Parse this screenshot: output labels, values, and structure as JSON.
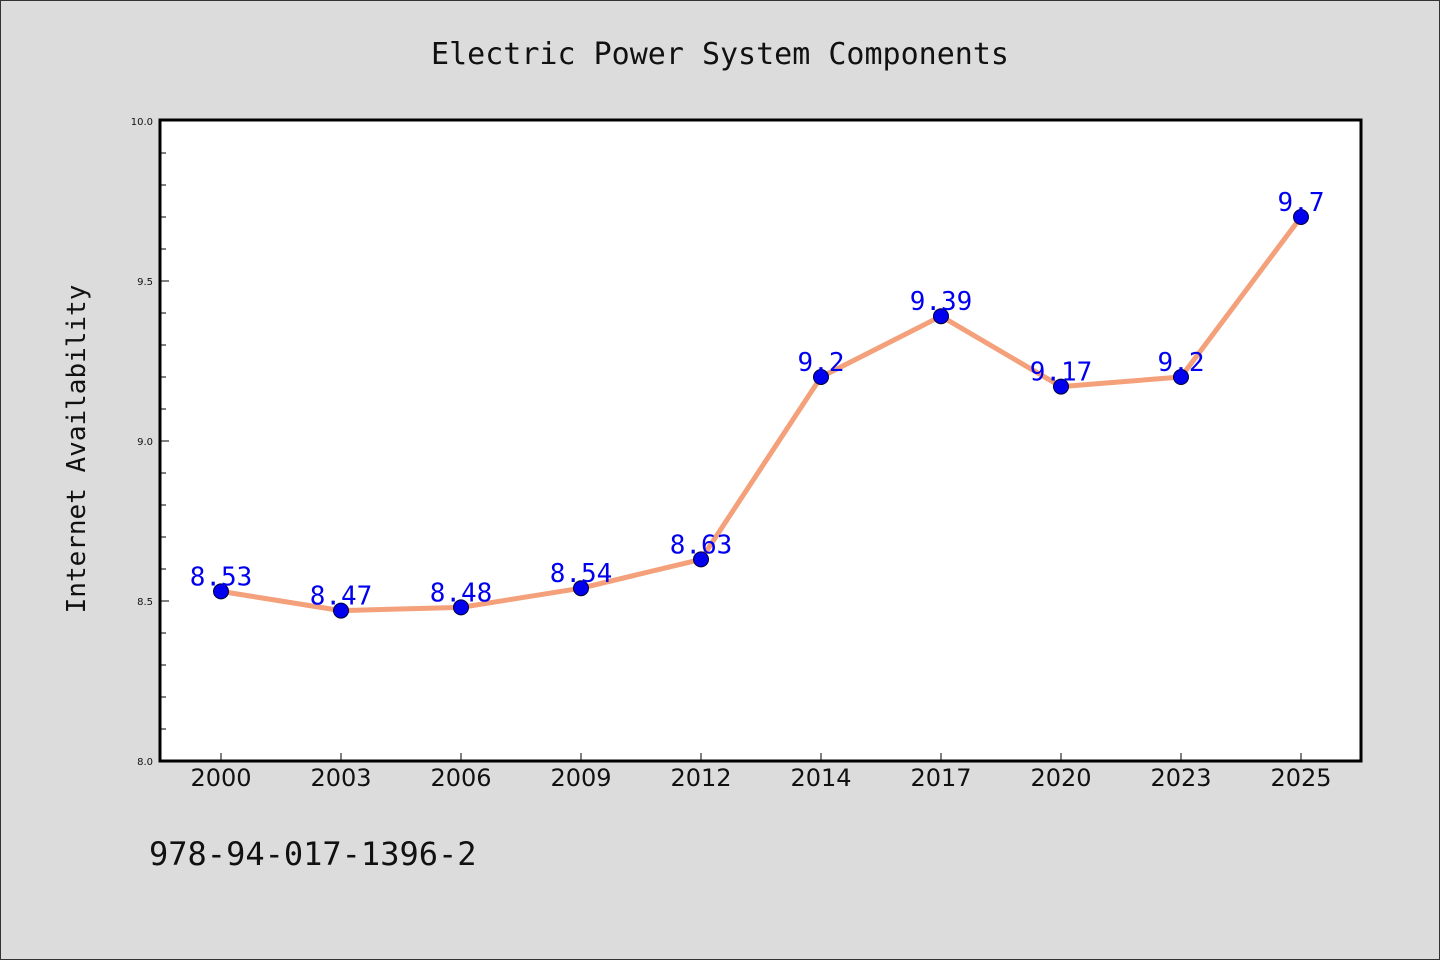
{
  "chart_data": {
    "type": "line",
    "title": "Electric Power System Components",
    "xlabel": "",
    "ylabel": "Internet Availability",
    "categories": [
      "2000",
      "2003",
      "2006",
      "2009",
      "2012",
      "2014",
      "2017",
      "2020",
      "2023",
      "2025"
    ],
    "series": [
      {
        "values": [
          8.53,
          8.47,
          8.48,
          8.54,
          8.63,
          9.2,
          9.39,
          9.17,
          9.2,
          9.7
        ],
        "data_labels": [
          "8.53",
          "8.47",
          "8.48",
          "8.54",
          "8.63",
          "9.2",
          "9.39",
          "9.17",
          "9.2",
          "9.7"
        ]
      }
    ],
    "ylim": [
      8.0,
      10.0
    ],
    "y_ticks": [
      "8.0",
      "8.5",
      "9.0",
      "9.5",
      "10.0"
    ],
    "grid": false,
    "legend": "none",
    "colors": {
      "line": "#f4a07a",
      "marker": "#0000ee",
      "marker_edge": "#000033",
      "data_label": "#0000ee",
      "plot_background": "#ffffff",
      "page_background": "#dcdcdc"
    }
  },
  "footer_code": "978-94-017-1396-2"
}
